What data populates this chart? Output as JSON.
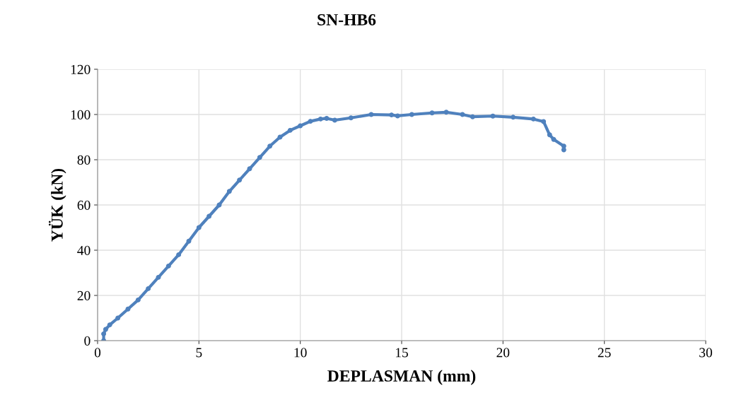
{
  "chart_data": {
    "type": "line",
    "title": "SN-HB6",
    "xlabel": "DEPLASMAN (mm)",
    "ylabel": "YÜK (kN)",
    "xlim": [
      0,
      30
    ],
    "xticks": [
      0,
      5,
      10,
      15,
      20,
      25,
      30
    ],
    "ylim": [
      0,
      120
    ],
    "yticks": [
      0,
      20,
      40,
      60,
      80,
      100,
      120
    ],
    "grid": true,
    "legend": false,
    "marker": "circle",
    "line_style": "solid",
    "series": [
      {
        "color": "#4f81bd",
        "x": [
          0.3,
          0.3,
          0.4,
          0.6,
          1,
          1.5,
          2,
          2.5,
          3,
          3.5,
          4,
          4.5,
          5,
          5.5,
          6,
          6.5,
          7,
          7.5,
          8,
          8.5,
          9,
          9.5,
          10,
          10.5,
          11,
          11.3,
          11.7,
          12.5,
          13.5,
          14.5,
          14.8,
          15.5,
          16.5,
          17.2,
          18,
          18.5,
          19.5,
          20.5,
          21.5,
          22,
          22.3,
          22.5,
          23,
          23.0
        ],
        "values": [
          0,
          3,
          5,
          7,
          10,
          14,
          18,
          23,
          28,
          33,
          38,
          44,
          50,
          55,
          60,
          66,
          71,
          76,
          81,
          86,
          90,
          93,
          95,
          97,
          98,
          98.3,
          97.5,
          98.5,
          100,
          99.8,
          99.4,
          100,
          100.7,
          101,
          100,
          99,
          99.3,
          98.8,
          98,
          96.9,
          91,
          89,
          86,
          84.4
        ]
      }
    ]
  }
}
